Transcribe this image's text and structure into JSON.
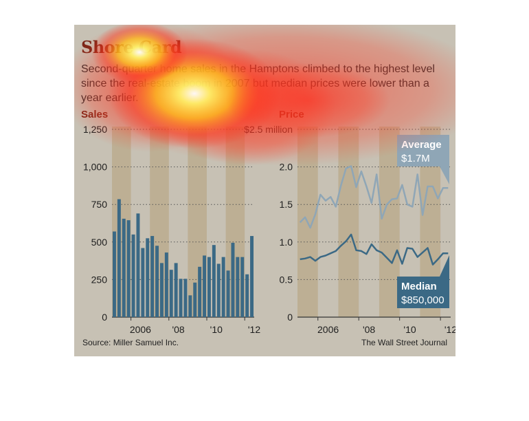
{
  "header": {
    "title": "Shore Card",
    "subtitle": "Second-quarter home sales in the Hamptons climbed to the highest level since the real-estate boom in 2007 but median prices were lower than a year earlier."
  },
  "footer": {
    "source": "Source: Miller Samuel Inc.",
    "credit": "The Wall Street Journal"
  },
  "colors": {
    "background": "#c7c1b4",
    "shade": "#b9a88a",
    "bars": "#3b6985",
    "average_line": "#8fa6b6",
    "median_line": "#3b6985",
    "title": "#7a2618"
  },
  "chart_data": [
    {
      "type": "bar",
      "title": "Sales",
      "x_tick_labels": [
        "2006",
        "'08",
        "'10",
        "'12"
      ],
      "y_tick_labels": [
        "0",
        "250",
        "500",
        "750",
        "1,000",
        "1,250"
      ],
      "ylim": [
        0,
        1250
      ],
      "grid": true,
      "categories": [
        "2005 Q1",
        "2005 Q2",
        "2005 Q3",
        "2005 Q4",
        "2006 Q1",
        "2006 Q2",
        "2006 Q3",
        "2006 Q4",
        "2007 Q1",
        "2007 Q2",
        "2007 Q3",
        "2007 Q4",
        "2008 Q1",
        "2008 Q2",
        "2008 Q3",
        "2008 Q4",
        "2009 Q1",
        "2009 Q2",
        "2009 Q3",
        "2009 Q4",
        "2010 Q1",
        "2010 Q2",
        "2010 Q3",
        "2010 Q4",
        "2011 Q1",
        "2011 Q2",
        "2011 Q3",
        "2011 Q4",
        "2012 Q1",
        "2012 Q2"
      ],
      "values": [
        570,
        785,
        655,
        645,
        550,
        690,
        460,
        525,
        540,
        475,
        360,
        430,
        315,
        360,
        255,
        255,
        145,
        230,
        335,
        410,
        400,
        480,
        355,
        400,
        310,
        495,
        400,
        400,
        285,
        540
      ]
    },
    {
      "type": "line",
      "title": "Price",
      "x_tick_labels": [
        "2006",
        "'08",
        "'10",
        "'12"
      ],
      "y_tick_labels": [
        "0",
        "0.5",
        "1.0",
        "1.5",
        "2.0",
        "$2.5 million"
      ],
      "ylim": [
        0,
        2.5
      ],
      "grid": true,
      "categories": [
        "2005 Q1",
        "2005 Q2",
        "2005 Q3",
        "2005 Q4",
        "2006 Q1",
        "2006 Q2",
        "2006 Q3",
        "2006 Q4",
        "2007 Q1",
        "2007 Q2",
        "2007 Q3",
        "2007 Q4",
        "2008 Q1",
        "2008 Q2",
        "2008 Q3",
        "2008 Q4",
        "2009 Q1",
        "2009 Q2",
        "2009 Q3",
        "2009 Q4",
        "2010 Q1",
        "2010 Q2",
        "2010 Q3",
        "2010 Q4",
        "2011 Q1",
        "2011 Q2",
        "2011 Q3",
        "2011 Q4",
        "2012 Q1",
        "2012 Q2"
      ],
      "series": [
        {
          "name": "Average",
          "callout_label": "Average",
          "callout_value": "$1.7M",
          "values": [
            1.26,
            1.33,
            1.19,
            1.37,
            1.63,
            1.55,
            1.6,
            1.47,
            1.75,
            1.98,
            2.01,
            1.73,
            1.94,
            1.74,
            1.52,
            1.9,
            1.31,
            1.5,
            1.57,
            1.58,
            1.76,
            1.5,
            1.47,
            1.9,
            1.36,
            1.74,
            1.74,
            1.58,
            1.72,
            1.72
          ]
        },
        {
          "name": "Median",
          "callout_label": "Median",
          "callout_value": "$850,000",
          "values": [
            0.77,
            0.78,
            0.8,
            0.75,
            0.8,
            0.82,
            0.85,
            0.88,
            0.95,
            1.01,
            1.1,
            0.89,
            0.88,
            0.84,
            0.97,
            0.89,
            0.86,
            0.79,
            0.72,
            0.89,
            0.71,
            0.92,
            0.91,
            0.8,
            0.86,
            0.92,
            0.7,
            0.77,
            0.85,
            0.85
          ]
        }
      ]
    }
  ]
}
